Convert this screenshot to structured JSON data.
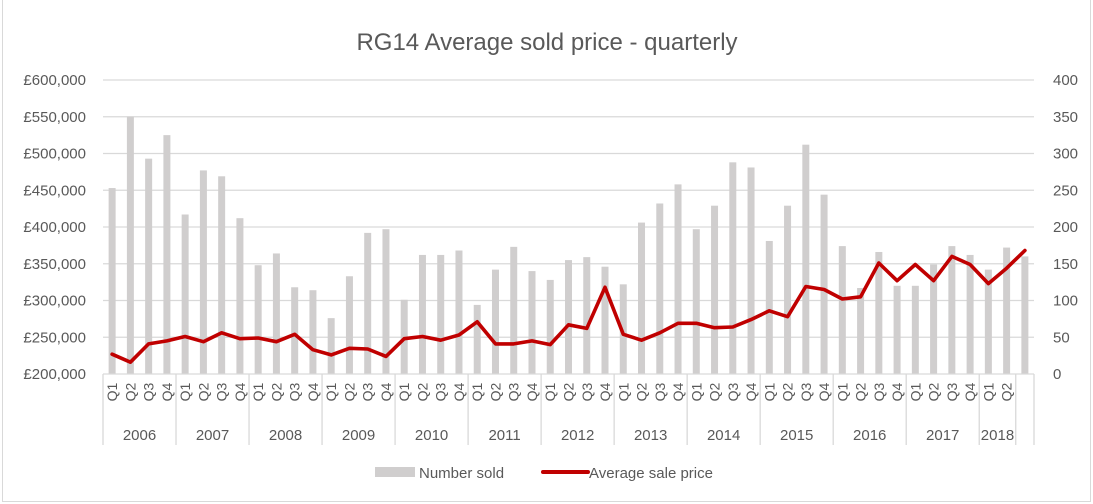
{
  "chart_data": {
    "type": "bar",
    "title": "RG14 Average sold price - quarterly",
    "xlabel": "",
    "ylabel_left": "",
    "ylabel_right": "",
    "grid": true,
    "legend_position": "bottom",
    "left_axis": {
      "min": 200000,
      "max": 600000,
      "step": 50000,
      "tick_labels": [
        "£200,000",
        "£250,000",
        "£300,000",
        "£350,000",
        "£400,000",
        "£450,000",
        "£500,000",
        "£550,000",
        "£600,000"
      ]
    },
    "right_axis": {
      "min": 0,
      "max": 400,
      "step": 50,
      "tick_labels": [
        "0",
        "50",
        "100",
        "150",
        "200",
        "250",
        "300",
        "350",
        "400"
      ]
    },
    "years": [
      {
        "label": "2006",
        "quarters": 4
      },
      {
        "label": "2007",
        "quarters": 4
      },
      {
        "label": "2008",
        "quarters": 4
      },
      {
        "label": "2009",
        "quarters": 4
      },
      {
        "label": "2010",
        "quarters": 4
      },
      {
        "label": "2011",
        "quarters": 4
      },
      {
        "label": "2012",
        "quarters": 4
      },
      {
        "label": "2013",
        "quarters": 4
      },
      {
        "label": "2014",
        "quarters": 4
      },
      {
        "label": "2015",
        "quarters": 4
      },
      {
        "label": "2016",
        "quarters": 4
      },
      {
        "label": "2017",
        "quarters": 4
      },
      {
        "label": "2018",
        "quarters": 2
      },
      {
        "label": "",
        "quarters": 1
      }
    ],
    "categories": [
      "Q1",
      "Q2",
      "Q3",
      "Q4",
      "Q1",
      "Q2",
      "Q3",
      "Q4",
      "Q1",
      "Q2",
      "Q3",
      "Q4",
      "Q1",
      "Q2",
      "Q3",
      "Q4",
      "Q1",
      "Q2",
      "Q3",
      "Q4",
      "Q1",
      "Q2",
      "Q3",
      "Q4",
      "Q1",
      "Q2",
      "Q3",
      "Q4",
      "Q1",
      "Q2",
      "Q3",
      "Q4",
      "Q1",
      "Q2",
      "Q3",
      "Q4",
      "Q1",
      "Q2",
      "Q3",
      "Q4",
      "Q1",
      "Q2",
      "Q3",
      "Q4",
      "Q1",
      "Q2",
      "Q3",
      "Q4",
      "Q1",
      "Q2",
      ""
    ],
    "series": [
      {
        "name": "Number sold",
        "type": "bar",
        "axis": "right",
        "color": "#d0cece",
        "values": [
          253,
          350,
          293,
          325,
          217,
          277,
          269,
          212,
          148,
          164,
          118,
          114,
          76,
          133,
          192,
          197,
          101,
          162,
          162,
          168,
          94,
          142,
          173,
          140,
          128,
          155,
          159,
          146,
          122,
          206,
          232,
          258,
          197,
          229,
          288,
          281,
          181,
          229,
          312,
          244,
          174,
          117,
          166,
          120,
          120,
          149,
          174,
          162,
          142,
          172,
          160
        ]
      },
      {
        "name": "Average sale price",
        "type": "line",
        "axis": "left",
        "color": "#c00000",
        "values": [
          227000,
          216000,
          241000,
          245000,
          251000,
          244000,
          256000,
          248000,
          249000,
          244000,
          254000,
          233000,
          226000,
          235000,
          234000,
          224000,
          248000,
          251000,
          246000,
          253000,
          271000,
          241000,
          241000,
          245000,
          240000,
          267000,
          262000,
          318000,
          254000,
          246000,
          256000,
          269000,
          269000,
          263000,
          264000,
          274000,
          286000,
          278000,
          319000,
          315000,
          302000,
          305000,
          351000,
          327000,
          349000,
          327000,
          360000,
          349000,
          323000,
          344000,
          368000
        ]
      }
    ]
  },
  "colors": {
    "bar": "#d0cece",
    "line": "#c00000",
    "grid": "#d9d9d9",
    "text": "#595959"
  }
}
